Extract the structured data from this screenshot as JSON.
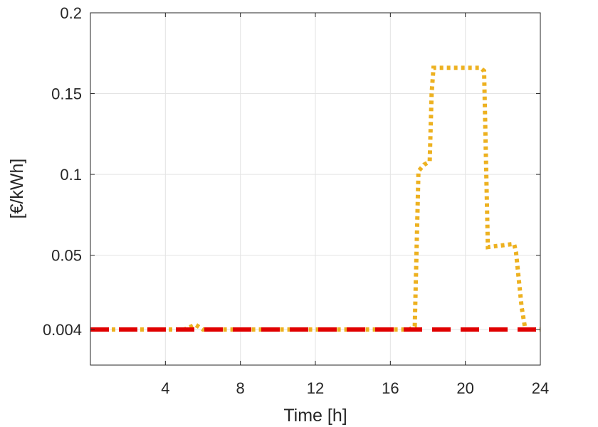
{
  "chart_data": {
    "type": "line",
    "title": "",
    "xlabel": "Time [h]",
    "ylabel": "[€/kWh]",
    "xlim": [
      0,
      24
    ],
    "ylim": [
      -0.018,
      0.2
    ],
    "xticks": [
      4,
      8,
      12,
      16,
      20,
      24
    ],
    "xtick_labels": [
      "4",
      "8",
      "12",
      "16",
      "20",
      "24"
    ],
    "yticks": [
      0.004,
      0.05,
      0.1,
      0.15,
      0.2
    ],
    "ytick_labels": [
      "0.004",
      "0.05",
      "0.1",
      "0.15",
      "0.2"
    ],
    "grid": true,
    "series": [
      {
        "color": "#EDB120",
        "style": "dotted",
        "x": [
          0,
          5.0,
          5.6,
          6.0,
          17.0,
          17.3,
          17.5,
          17.8,
          18.1,
          18.2,
          18.3,
          20.8,
          21.0,
          21.1,
          21.2,
          22.6,
          22.7,
          23.0,
          23.2,
          24
        ],
        "y": [
          0.004,
          0.004,
          0.007,
          0.004,
          0.004,
          0.006,
          0.102,
          0.106,
          0.108,
          0.15,
          0.166,
          0.166,
          0.164,
          0.11,
          0.055,
          0.057,
          0.052,
          0.018,
          0.004,
          0.004
        ]
      },
      {
        "color": "#E00000",
        "style": "dashed",
        "x": [
          0,
          24
        ],
        "y": [
          0.004,
          0.004
        ]
      }
    ]
  }
}
